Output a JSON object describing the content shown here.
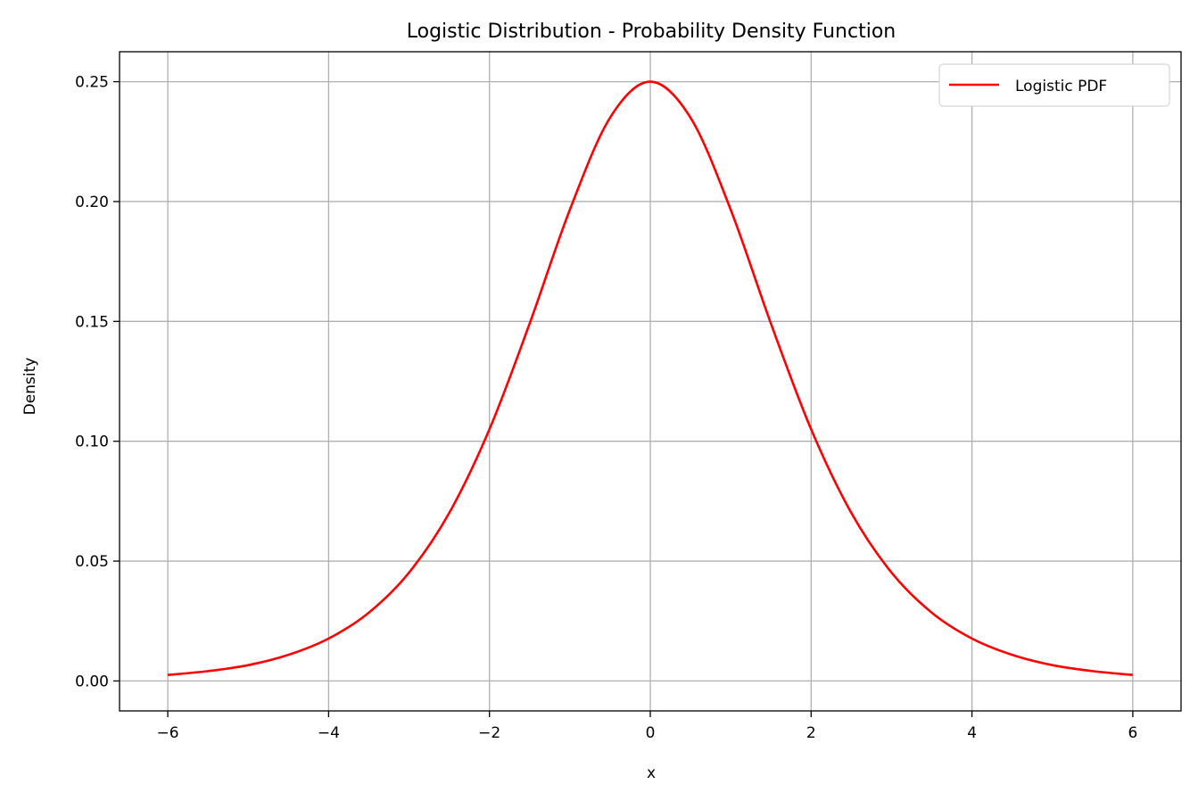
{
  "chart_data": {
    "type": "line",
    "title": "Logistic Distribution - Probability Density Function",
    "xlabel": "x",
    "ylabel": "Density",
    "xlim": [
      -6.6,
      6.6
    ],
    "ylim": [
      -0.0125,
      0.2625
    ],
    "x_ticks": [
      -6,
      -4,
      -2,
      0,
      2,
      4,
      6
    ],
    "x_tick_labels": [
      "−6",
      "−4",
      "−2",
      "0",
      "2",
      "4",
      "6"
    ],
    "y_ticks": [
      0.0,
      0.05,
      0.1,
      0.15,
      0.2,
      0.25
    ],
    "y_tick_labels": [
      "0.00",
      "0.05",
      "0.10",
      "0.15",
      "0.20",
      "0.25"
    ],
    "grid": true,
    "legend": {
      "position": "upper right",
      "entries": [
        "Logistic PDF"
      ]
    },
    "series": [
      {
        "name": "Logistic PDF",
        "color": "#ff0000",
        "x": [
          -6,
          -5.5,
          -5,
          -4.5,
          -4,
          -3.5,
          -3,
          -2.5,
          -2,
          -1.5,
          -1,
          -0.5,
          0,
          0.5,
          1,
          1.5,
          2,
          2.5,
          3,
          3.5,
          4,
          4.5,
          5,
          5.5,
          6
        ],
        "y": [
          0.0025,
          0.0041,
          0.0066,
          0.0109,
          0.0177,
          0.0285,
          0.0452,
          0.0701,
          0.105,
          0.1491,
          0.1966,
          0.235,
          0.25,
          0.235,
          0.1966,
          0.1491,
          0.105,
          0.0701,
          0.0452,
          0.0285,
          0.0177,
          0.0109,
          0.0066,
          0.0041,
          0.0025
        ]
      }
    ]
  },
  "colors": {
    "grid": "#b0b0b0",
    "axes": "#000000",
    "line": "#ff0000"
  }
}
